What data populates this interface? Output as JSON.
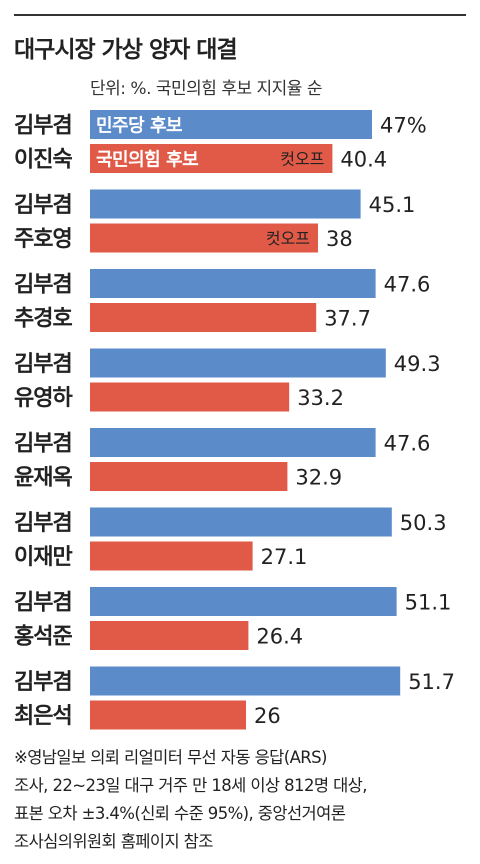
{
  "title": "대구시장 가상 양자 대결",
  "unit": "단위: %. 국민의힘 후보 지지율 순",
  "colors": {
    "democratic": "#5b8bc9",
    "ppp": "#e05a47"
  },
  "chart_data": {
    "type": "bar",
    "orientation": "horizontal",
    "xlim": [
      0,
      55
    ],
    "series": [
      {
        "name": "민주당 후보",
        "color": "#5b8bc9"
      },
      {
        "name": "국민의힘 후보",
        "color": "#e05a47"
      }
    ],
    "matchups": [
      {
        "democratic": "김부겸",
        "ppp": "이진숙",
        "democratic_value": 47,
        "ppp_value": 40.4,
        "democratic_label": "47%",
        "ppp_label": "40.4",
        "annotation": "컷오프"
      },
      {
        "democratic": "김부겸",
        "ppp": "주호영",
        "democratic_value": 45.1,
        "ppp_value": 38,
        "democratic_label": "45.1",
        "ppp_label": "38",
        "annotation": "컷오프"
      },
      {
        "democratic": "김부겸",
        "ppp": "추경호",
        "democratic_value": 47.6,
        "ppp_value": 37.7,
        "democratic_label": "47.6",
        "ppp_label": "37.7",
        "annotation": ""
      },
      {
        "democratic": "김부겸",
        "ppp": "유영하",
        "democratic_value": 49.3,
        "ppp_value": 33.2,
        "democratic_label": "49.3",
        "ppp_label": "33.2",
        "annotation": ""
      },
      {
        "democratic": "김부겸",
        "ppp": "윤재옥",
        "democratic_value": 47.6,
        "ppp_value": 32.9,
        "democratic_label": "47.6",
        "ppp_label": "32.9",
        "annotation": ""
      },
      {
        "democratic": "김부겸",
        "ppp": "이재만",
        "democratic_value": 50.3,
        "ppp_value": 27.1,
        "democratic_label": "50.3",
        "ppp_label": "27.1",
        "annotation": ""
      },
      {
        "democratic": "김부겸",
        "ppp": "홍석준",
        "democratic_value": 51.1,
        "ppp_value": 26.4,
        "democratic_label": "51.1",
        "ppp_label": "26.4",
        "annotation": ""
      },
      {
        "democratic": "김부겸",
        "ppp": "최은석",
        "democratic_value": 51.7,
        "ppp_value": 26,
        "democratic_label": "51.7",
        "ppp_label": "26",
        "annotation": ""
      }
    ]
  },
  "footnote": [
    "※영남일보 의뢰 리얼미터 무선 자동 응답(ARS)",
    "조사, 22~23일 대구 거주 만 18세 이상 812명 대상,",
    "표본 오차 ±3.4%(신뢰 수준 95%), 중앙선거여론",
    "조사심의위원회 홈페이지 참조"
  ]
}
